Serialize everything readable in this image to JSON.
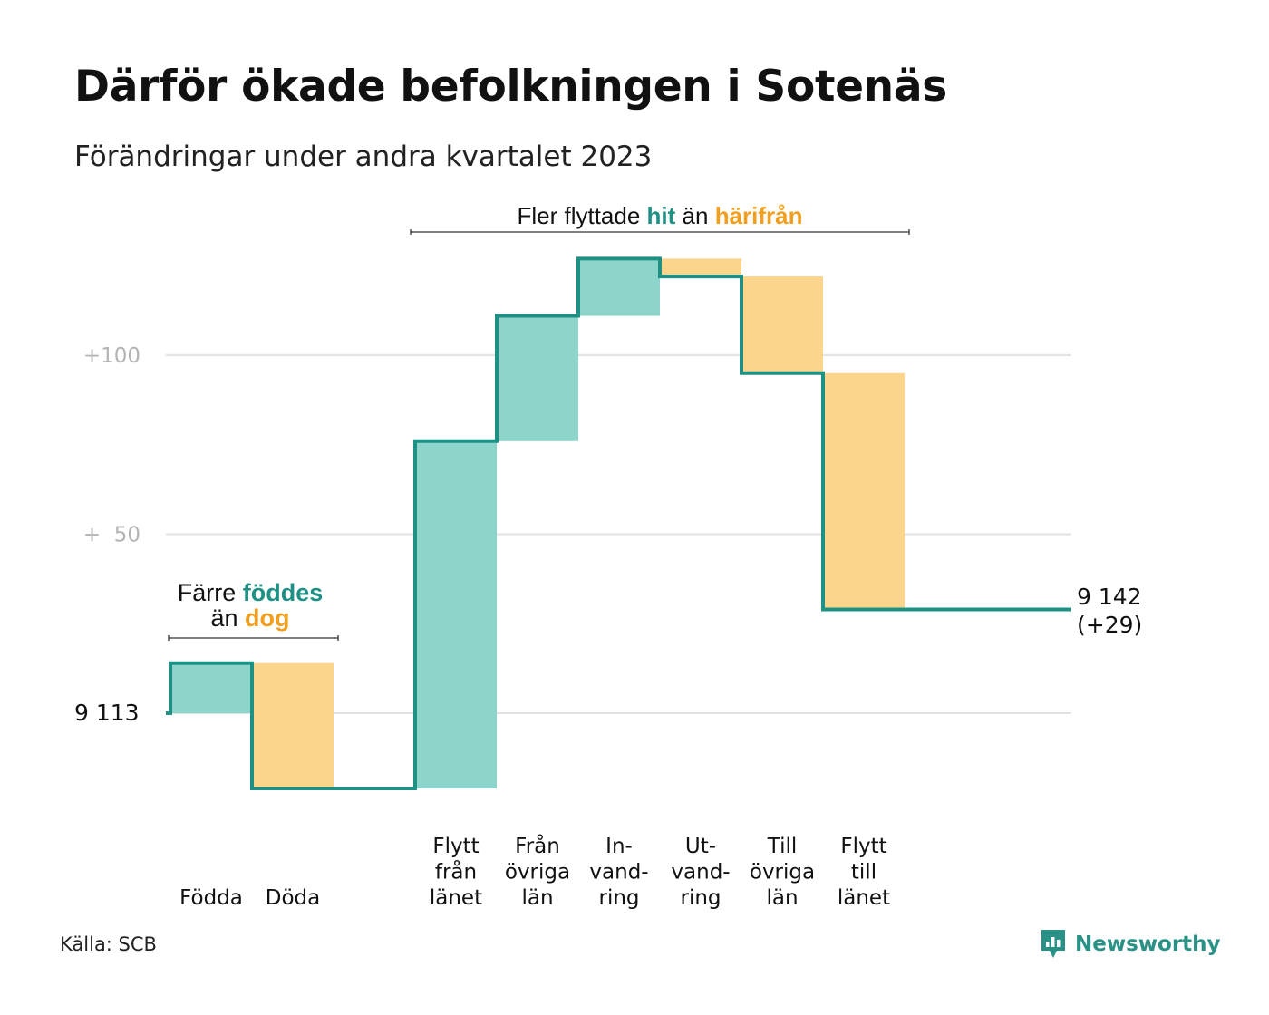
{
  "title": "Därför ökade befolkningen i Sotenäs",
  "subtitle": "Förändringar under andra kvartalet 2023",
  "source": "Källa: SCB",
  "brand": "Newsworthy",
  "colors": {
    "increase": "#8dd4cb",
    "decrease": "#fad58b",
    "line": "#1f9184",
    "highlight_teal": "#1f9184",
    "highlight_orange": "#f29f1f",
    "grid": "#e2e2e2",
    "tick": "#b4b4b4"
  },
  "annotations": {
    "natural": {
      "prefix": "Färre",
      "hl1": "föddes",
      "mid": "än",
      "hl2": "dog"
    },
    "migration": {
      "prefix": "Fler flyttade",
      "hl1": "hit",
      "mid": "än",
      "hl2": "härifrån"
    }
  },
  "chart_data": {
    "type": "waterfall",
    "start_label": "9  113",
    "start_value": 9113,
    "end_label": "9 142",
    "end_change": "(+29)",
    "end_value": 9142,
    "yticks": [
      {
        "value": 100,
        "label": "+100"
      },
      {
        "value": 50,
        "label": "+  50"
      },
      {
        "value": 0,
        "label": ""
      }
    ],
    "ylim": [
      -30,
      130
    ],
    "groups": [
      {
        "name": "natural",
        "bars": [
          {
            "label": [
              "Födda"
            ],
            "change": 14
          },
          {
            "label": [
              "Döda"
            ],
            "change": -35
          }
        ]
      },
      {
        "name": "migration",
        "bars": [
          {
            "label": [
              "Flytt",
              "från",
              "länet"
            ],
            "change": 97
          },
          {
            "label": [
              "Från",
              "övriga",
              "län"
            ],
            "change": 35
          },
          {
            "label": [
              "In-",
              "vand-",
              "ring"
            ],
            "change": 16
          },
          {
            "label": [
              "Ut-",
              "vand-",
              "ring"
            ],
            "change": -5
          },
          {
            "label": [
              "Till",
              "övriga",
              "län"
            ],
            "change": -27
          },
          {
            "label": [
              "Flytt",
              "till",
              "länet"
            ],
            "change": -66
          }
        ]
      }
    ]
  }
}
